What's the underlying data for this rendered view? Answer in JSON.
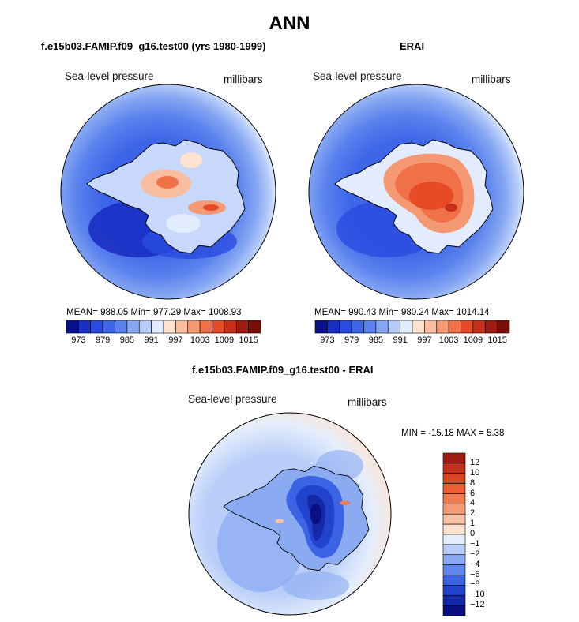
{
  "title": "ANN",
  "panels": [
    {
      "title": "f.e15b03.FAMIP.f09_g16.test00 (yrs 1980-1999)",
      "variable": "Sea-level pressure",
      "units": "millibars",
      "stats": "MEAN= 988.05   Min= 977.29   Max= 1008.93",
      "mean": 988.05,
      "min": 977.29,
      "max": 1008.93
    },
    {
      "title": "ERAI",
      "variable": "Sea-level pressure",
      "units": "millibars",
      "stats": "MEAN= 990.43   Min= 980.24   Max= 1014.14",
      "mean": 990.43,
      "min": 980.24,
      "max": 1014.14
    },
    {
      "title": "f.e15b03.FAMIP.f09_g16.test00 - ERAI",
      "variable": "Sea-level pressure",
      "units": "millibars",
      "stats": "MIN = -15.18 MAX =    5.38",
      "min": -15.18,
      "max": 5.38
    }
  ],
  "colorbar_horizontal": {
    "tick_labels": [
      "973",
      "979",
      "985",
      "991",
      "997",
      "1003",
      "1009",
      "1015"
    ],
    "colors": [
      "#0a0f8c",
      "#1a2fc4",
      "#2a4be0",
      "#3e66e8",
      "#5a82ee",
      "#86a6f2",
      "#b5cbf8",
      "#e2ecfc",
      "#fde2d0",
      "#f9bea0",
      "#f59874",
      "#f07148",
      "#e64a26",
      "#c8301a",
      "#a01c10",
      "#7a0c08"
    ]
  },
  "colorbar_vertical": {
    "tick_labels": [
      "12",
      "10",
      "8",
      "6",
      "4",
      "2",
      "1",
      "0",
      "−1",
      "−2",
      "−4",
      "−6",
      "−8",
      "−10",
      "−12"
    ],
    "colors": [
      "#a01c10",
      "#c0301a",
      "#dc4426",
      "#ee5e34",
      "#f07b50",
      "#f49c76",
      "#f9c2a4",
      "#fde2d0",
      "#e6eefc",
      "#b8cef8",
      "#8aaaf2",
      "#5e86ec",
      "#3a64e4",
      "#2244cc",
      "#1428a8",
      "#0a0f82"
    ]
  },
  "colors": {
    "background": "#ffffff",
    "coastline": "#000000"
  }
}
